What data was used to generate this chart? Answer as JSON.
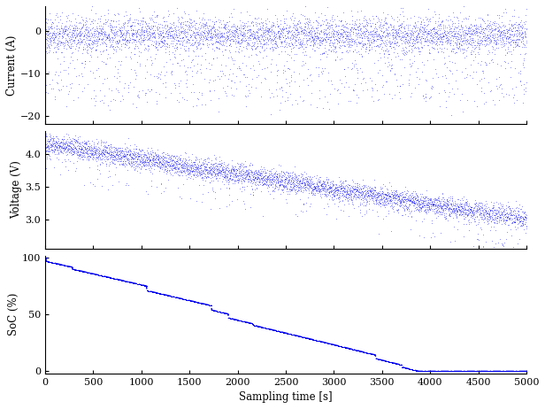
{
  "color": "#0000EE",
  "xlim": [
    0,
    5000
  ],
  "current_ylim": [
    -22,
    6
  ],
  "voltage_ylim": [
    2.55,
    4.35
  ],
  "soc_ylim": [
    -2,
    102
  ],
  "current_yticks": [
    -20,
    -10,
    0
  ],
  "voltage_yticks": [
    3.0,
    3.5,
    4.0
  ],
  "soc_yticks": [
    0,
    50,
    100
  ],
  "xticks": [
    0,
    500,
    1000,
    1500,
    2000,
    2500,
    3000,
    3500,
    4000,
    4500,
    5000
  ],
  "xlabel": "Sampling time [s]",
  "ylabel_current": "Current (A)",
  "ylabel_voltage": "Voltage (V)",
  "ylabel_soc": "SoC (%)",
  "n_points": 5000,
  "seed": 42
}
